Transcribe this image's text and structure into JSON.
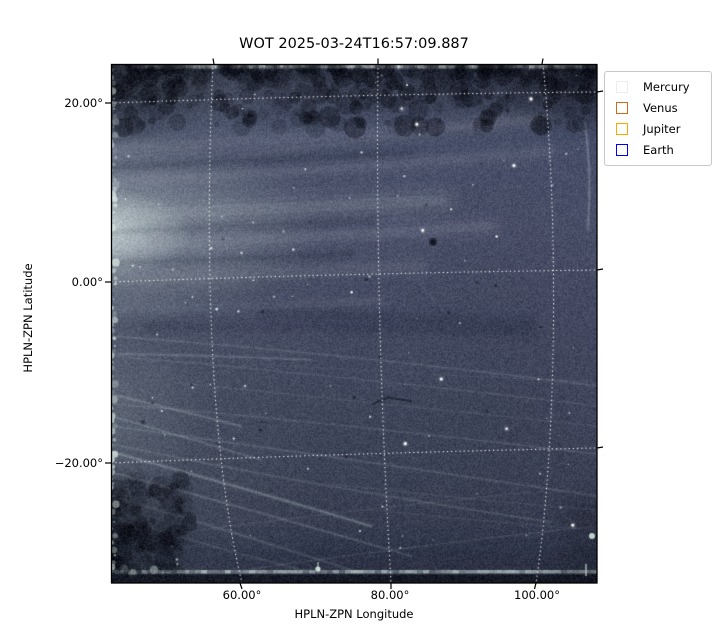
{
  "figure": {
    "title": "WOT 2025-03-24T16:57:09.887",
    "background": "#ffffff"
  },
  "axes": {
    "xlabel": "HPLN-ZPN Longitude",
    "ylabel": "HPLN-ZPN Latitude",
    "xticks": [
      {
        "label": "60.00°"
      },
      {
        "label": "80.00°"
      },
      {
        "label": "100.00°"
      }
    ],
    "yticks": [
      {
        "label": "20.00°"
      },
      {
        "label": "0.00°"
      },
      {
        "label": "−20.00°"
      }
    ]
  },
  "legend": {
    "items": [
      {
        "label": "Mercury",
        "color": "#ececec"
      },
      {
        "label": "Venus",
        "color": "#d2691e"
      },
      {
        "label": "Jupiter",
        "color": "#ffa500"
      },
      {
        "label": "Earth",
        "color": "#0000ff"
      }
    ]
  },
  "chart_data": {
    "type": "heatmap",
    "subtype": "wide-field sky image map",
    "title": "WOT 2025-03-24T16:57:09.887",
    "xlabel": "HPLN-ZPN Longitude",
    "ylabel": "HPLN-ZPN Latitude",
    "projection": "HPLN/HPLT-ZPN zenithal polynomial; white dotted curved graticule",
    "x_ticks_deg": [
      60,
      80,
      100
    ],
    "y_ticks_deg": [
      20,
      0,
      -20
    ],
    "x_range_deg": [
      43,
      108
    ],
    "y_range_deg": [
      -33.5,
      24.5
    ],
    "grid": {
      "style": "dotted",
      "color": "#ffffff",
      "curved": true
    },
    "legend_position": "upper right, outside axes",
    "legend_entries": [
      {
        "label": "Mercury",
        "marker": "unfilled square",
        "color": "#ececec"
      },
      {
        "label": "Venus",
        "marker": "unfilled square",
        "color": "#d2691e"
      },
      {
        "label": "Jupiter",
        "marker": "unfilled square",
        "color": "#ffa500"
      },
      {
        "label": "Earth",
        "marker": "unfilled square",
        "color": "#0000ff"
      }
    ],
    "planet_markers_visible_in_field": false,
    "image_palette": {
      "base": "#434960",
      "dark_vignette": "#0a0c16",
      "bright_streaks": "#c9d5da",
      "left_glow": "#d0e0dd",
      "edge_rows": "#ecf7f4",
      "bottom_band": "#20242f"
    },
    "image_content": "Dark slate-blue noisy heliospheric image: bright diffuse glow at left edge near 0 deg latitude, broad horizontal bright/dark bands in upper third, fan of thin bright solar-wind streaks descending left-to-right across lower half, dark blotchy vignette band along top and in corners, single bright white row at the very top and bottom edges of the detector, speckled bright left edge column, dark band along the very bottom, scattered faint white stars and a few small dark specks (notable dark spot near 78 deg lon, 5 deg lat)."
  }
}
